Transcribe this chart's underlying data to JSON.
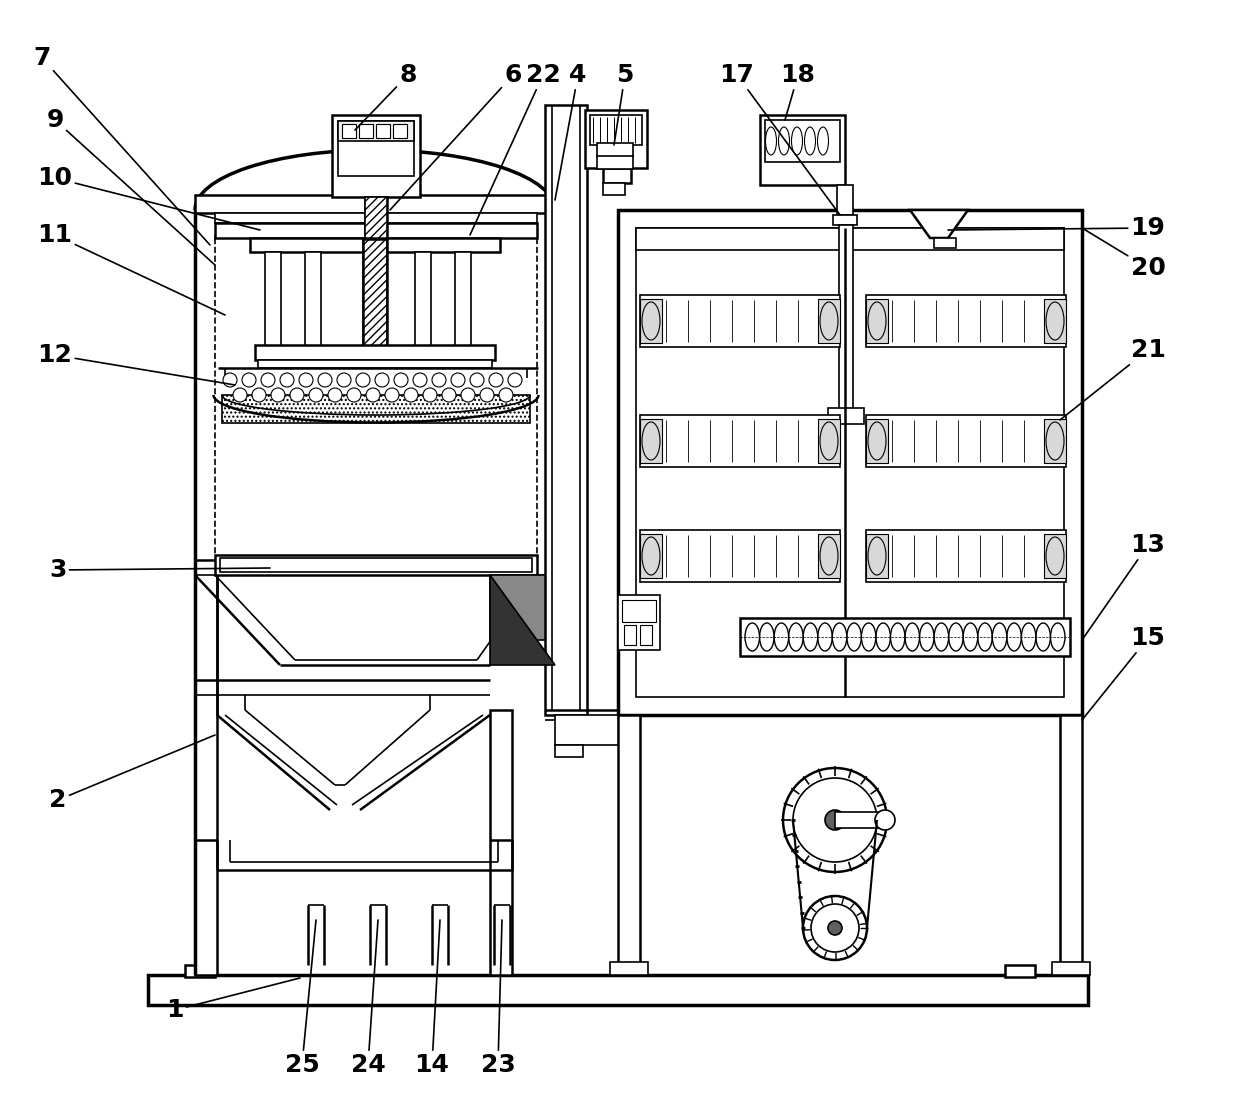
{
  "bg_color": "#ffffff",
  "figsize": [
    12.4,
    11.03
  ],
  "dpi": 100,
  "lw_thin": 1.2,
  "lw_med": 1.8,
  "lw_thick": 2.5
}
